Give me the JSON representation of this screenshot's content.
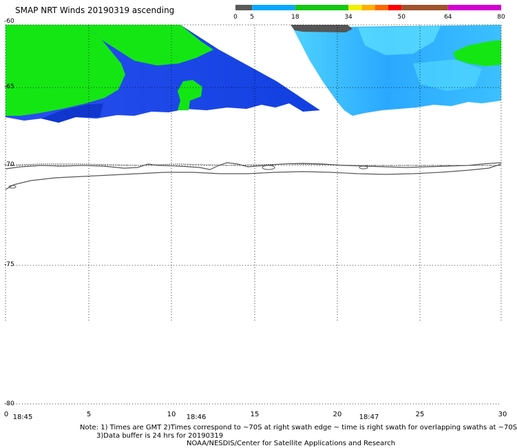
{
  "title": "SMAP NRT Winds 20190319 ascending",
  "colorbar": {
    "tick_labels": [
      "0",
      "5",
      "18",
      "34",
      "50",
      "64",
      "80"
    ],
    "segments": [
      {
        "from": 0,
        "to": 5,
        "color": "#5a5a5a"
      },
      {
        "from": 5,
        "to": 18,
        "color": "#0aa8ff"
      },
      {
        "from": 18,
        "to": 34,
        "color": "#14c814"
      },
      {
        "from": 34,
        "to": 38,
        "color": "#f0f000"
      },
      {
        "from": 38,
        "to": 42,
        "color": "#ffb000"
      },
      {
        "from": 42,
        "to": 46,
        "color": "#ff6a00"
      },
      {
        "from": 46,
        "to": 50,
        "color": "#ff0000"
      },
      {
        "from": 50,
        "to": 64,
        "color": "#a0522d"
      },
      {
        "from": 64,
        "to": 80,
        "color": "#d200d2"
      }
    ]
  },
  "map": {
    "lat_labels": [
      "-60",
      "-65",
      "-70",
      "-75",
      "-80"
    ],
    "lon_labels": [
      "0",
      "5",
      "10",
      "15",
      "20",
      "25",
      "30"
    ],
    "time_labels": [
      "18:45",
      "18:46",
      "18:47"
    ],
    "colors": {
      "wind_low": "#1546e6",
      "wind_mid": "#2aa4ff",
      "wind_light": "#55dcff",
      "wind_green": "#14e614",
      "wind_dark": "#555555",
      "coast": "#555555",
      "grid": "#000000"
    }
  },
  "notes": {
    "line1": "Note: 1) Times are GMT 2)Times correspond to ~70S at right swath edge ~ time is right swath for overlapping swaths at ~70S",
    "line2": "3)Data buffer is 24 hrs for 20190319",
    "line3": "NOAA/NESDIS/Center for Satellite Applications and Research"
  }
}
